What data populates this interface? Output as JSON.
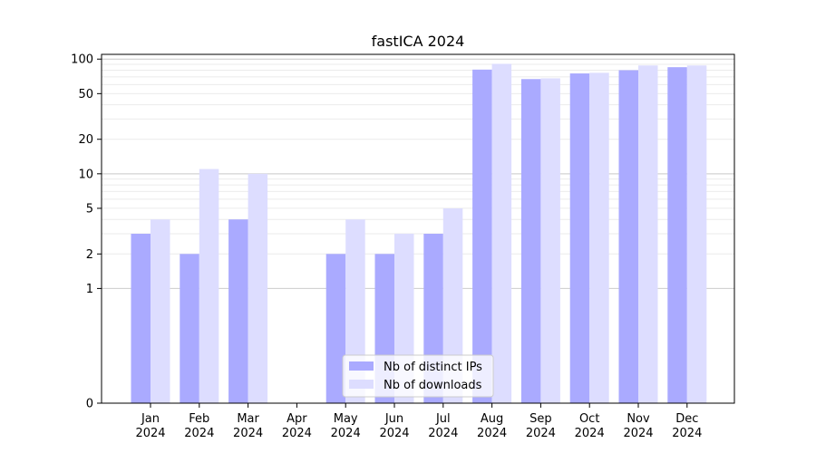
{
  "chart_data": {
    "type": "bar",
    "title": "fastICA 2024",
    "categories": [
      "Jan\n2024",
      "Feb\n2024",
      "Mar\n2024",
      "Apr\n2024",
      "May\n2024",
      "Jun\n2024",
      "Jul\n2024",
      "Aug\n2024",
      "Sep\n2024",
      "Oct\n2024",
      "Nov\n2024",
      "Dec\n2024"
    ],
    "series": [
      {
        "name": "Nb of distinct IPs",
        "color": "#aaaaff",
        "values": [
          3,
          2,
          4,
          0,
          2,
          2,
          3,
          81,
          67,
          75,
          80,
          85
        ]
      },
      {
        "name": "Nb of downloads",
        "color": "#ddddff",
        "values": [
          4,
          11,
          10,
          0,
          4,
          3,
          5,
          91,
          68,
          76,
          88,
          88
        ]
      }
    ],
    "yscale": "symlog",
    "ylim": [
      0,
      110
    ],
    "yticks": [
      0,
      1,
      2,
      5,
      10,
      20,
      50,
      100
    ],
    "ytick_labels": [
      "0",
      "1",
      "2",
      "5",
      "10",
      "20",
      "50",
      "100"
    ],
    "grid": true,
    "legend_position": "lower-center"
  }
}
